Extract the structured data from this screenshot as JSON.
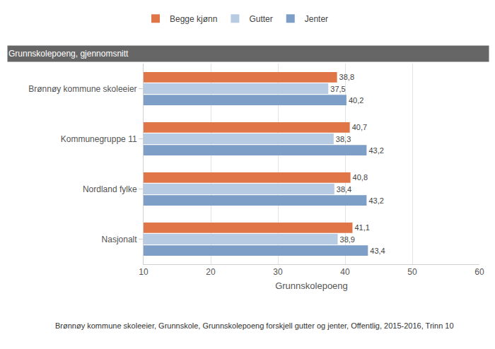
{
  "chart_data": {
    "type": "bar",
    "orientation": "horizontal",
    "title": "Grunnskolepoeng, gjennomsnitt",
    "x_label": "Grunnskolepoeng",
    "annotations": [
      "Brønnøy kommune skoleeier, Grunnskole, Grunnskolepoeng forskjell gutter og jenter, Offentlig, 2015-2016, Trinn 10"
    ],
    "categories": [
      "Brønnøy kommune skoleeier",
      "Kommunegruppe 11",
      "Nordland fylke",
      "Nasjonalt"
    ],
    "series": [
      {
        "name": "Begge kjønn",
        "color": "#e07648",
        "values": [
          38.8,
          40.7,
          40.8,
          41.1
        ],
        "value_labels": [
          "38,8",
          "40,7",
          "40,8",
          "41,1"
        ]
      },
      {
        "name": "Gutter",
        "color": "#b7cbe3",
        "values": [
          37.5,
          38.3,
          38.4,
          38.9
        ],
        "value_labels": [
          "37,5",
          "38,3",
          "38,4",
          "38,9"
        ]
      },
      {
        "name": "Jenter",
        "color": "#7d9ec7",
        "values": [
          40.2,
          43.2,
          43.2,
          43.4
        ],
        "value_labels": [
          "40,2",
          "43,2",
          "43,2",
          "43,4"
        ]
      }
    ],
    "xlim": [
      10,
      60
    ],
    "xticks": [
      10,
      20,
      30,
      40,
      50,
      60
    ],
    "grid": true,
    "legend": "top",
    "data_labels": true
  }
}
